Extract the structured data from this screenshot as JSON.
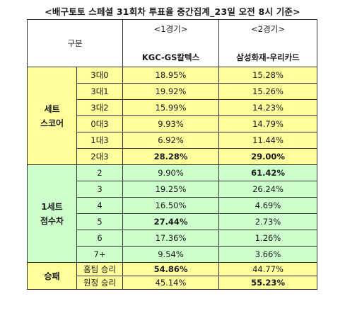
{
  "title": "<배구토토 스페셜 31회차 투표율 중간집계_23일 오전 8시 기준>",
  "header": {
    "category_label": "구분",
    "game1_label": "<1경기>",
    "game1_teams": "KGC-GS칼텍스",
    "game2_label": "<2경기>",
    "game2_teams": "삼성화재-우리카드"
  },
  "groups": {
    "set_score": "세트\n스코어",
    "set_score_line1": "세트",
    "set_score_line2": "스코어",
    "set_points_line1": "1세트",
    "set_points_line2": "점수차",
    "win_loss": "승패"
  },
  "set_score_rows": [
    {
      "label": "3대0",
      "g1": "18.95%",
      "g2": "15.28%"
    },
    {
      "label": "3대1",
      "g1": "19.92%",
      "g2": "15.26%"
    },
    {
      "label": "3대2",
      "g1": "15.99%",
      "g2": "14.23%"
    },
    {
      "label": "0대3",
      "g1": "9.93%",
      "g2": "14.79%"
    },
    {
      "label": "1대3",
      "g1": "6.92%",
      "g2": "11.44%"
    },
    {
      "label": "2대3",
      "g1": "28.28%",
      "g2": "29.00%"
    }
  ],
  "set_points_rows": [
    {
      "label": "2",
      "g1": "9.90%",
      "g2": "61.42%"
    },
    {
      "label": "3",
      "g1": "19.25%",
      "g2": "26.24%"
    },
    {
      "label": "4",
      "g1": "16.50%",
      "g2": "4.69%"
    },
    {
      "label": "5",
      "g1": "27.44%",
      "g2": "2.73%"
    },
    {
      "label": "6",
      "g1": "17.36%",
      "g2": "1.26%"
    },
    {
      "label": "7+",
      "g1": "9.54%",
      "g2": "3.66%"
    }
  ],
  "win_loss_rows": [
    {
      "label": "홈팀 승리",
      "g1": "54.86%",
      "g2": "44.77%"
    },
    {
      "label": "원정 승리",
      "g1": "45.14%",
      "g2": "55.23%"
    }
  ],
  "colors": {
    "yellow": "#fdfd9c",
    "green": "#ccffcc"
  }
}
